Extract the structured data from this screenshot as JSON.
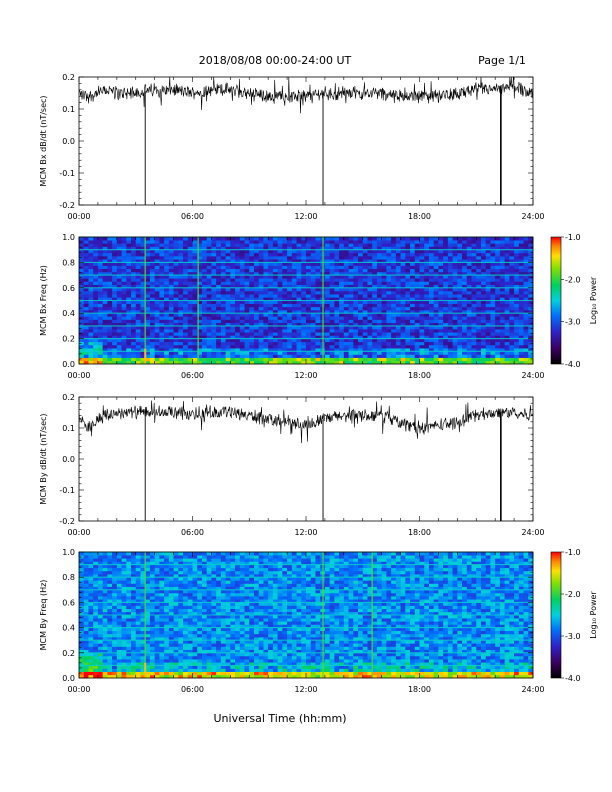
{
  "header": {
    "title": "2018/08/08  00:00-24:00 UT",
    "page": "Page 1/1"
  },
  "xlabel": "Universal Time (hh:mm)",
  "colorbar_label": "Log₁₀ Power",
  "chart_data": [
    {
      "type": "line",
      "ylabel": "MCM Bx dB/dt (nT/sec)",
      "xlim": [
        0,
        24
      ],
      "ylim": [
        -0.2,
        0.2
      ],
      "xticks": [
        "00:00",
        "06:00",
        "12:00",
        "18:00",
        "24:00"
      ],
      "yticks": [
        "0.2",
        "0.1",
        "0.0",
        "-0.1",
        "-0.2"
      ],
      "series": [
        {
          "x": [
            0,
            0.5,
            1,
            1.5,
            2,
            3,
            4,
            5,
            6,
            7,
            8,
            9,
            10,
            11,
            12,
            13,
            14,
            15,
            16,
            17,
            18,
            19,
            20,
            21,
            22,
            23,
            24
          ],
          "y": [
            0.15,
            0.14,
            0.15,
            0.16,
            0.15,
            0.15,
            0.16,
            0.16,
            0.15,
            0.16,
            0.16,
            0.15,
            0.14,
            0.14,
            0.14,
            0.15,
            0.15,
            0.15,
            0.15,
            0.14,
            0.14,
            0.14,
            0.15,
            0.16,
            0.16,
            0.17,
            0.15
          ]
        }
      ],
      "spikes": [
        3.5,
        12.9,
        22.3
      ]
    },
    {
      "type": "heatmap",
      "ylabel": "MCM Bx Freq (Hz)",
      "xlim": [
        0,
        24
      ],
      "ylim": [
        0,
        1
      ],
      "xticks": [
        "00:00",
        "06:00",
        "12:00",
        "18:00",
        "24:00"
      ],
      "yticks": [
        "1.0",
        "0.8",
        "0.6",
        "0.4",
        "0.2",
        "0.0"
      ],
      "colorbar": {
        "range": [
          -4.0,
          -1.0
        ],
        "ticks": [
          "-1.0",
          "-2.0",
          "-3.0",
          "-4.0"
        ]
      },
      "harmonic_lines_hz": [
        0.1,
        0.2,
        0.3,
        0.4,
        0.5,
        0.6,
        0.7,
        0.8,
        0.9,
        1.0
      ],
      "vertical_events": [
        3.5,
        6.3,
        12.9
      ]
    },
    {
      "type": "line",
      "ylabel": "MCM By dB/dt (nT/sec)",
      "xlim": [
        0,
        24
      ],
      "ylim": [
        -0.2,
        0.2
      ],
      "xticks": [
        "00:00",
        "06:00",
        "12:00",
        "18:00",
        "24:00"
      ],
      "yticks": [
        "0.2",
        "0.1",
        "0.0",
        "-0.1",
        "-0.2"
      ],
      "series": [
        {
          "x": [
            0,
            0.5,
            1,
            1.5,
            2,
            3,
            4,
            5,
            6,
            7,
            8,
            9,
            10,
            11,
            12,
            13,
            14,
            15,
            16,
            17,
            18,
            19,
            20,
            21,
            22,
            23,
            24
          ],
          "y": [
            0.14,
            0.1,
            0.13,
            0.14,
            0.15,
            0.15,
            0.15,
            0.15,
            0.14,
            0.15,
            0.15,
            0.14,
            0.13,
            0.12,
            0.11,
            0.13,
            0.14,
            0.14,
            0.14,
            0.12,
            0.1,
            0.11,
            0.12,
            0.14,
            0.15,
            0.15,
            0.14
          ]
        }
      ],
      "spikes": [
        3.5,
        12.9,
        22.3
      ]
    },
    {
      "type": "heatmap",
      "ylabel": "MCM By Freq (Hz)",
      "xlim": [
        0,
        24
      ],
      "ylim": [
        0,
        1
      ],
      "xticks": [
        "00:00",
        "06:00",
        "12:00",
        "18:00",
        "24:00"
      ],
      "yticks": [
        "1.0",
        "0.8",
        "0.6",
        "0.4",
        "0.2",
        "0.0"
      ],
      "colorbar": {
        "range": [
          -4.0,
          -1.0
        ],
        "ticks": [
          "-1.0",
          "-2.0",
          "-3.0",
          "-4.0"
        ]
      },
      "harmonic_lines_hz": [
        0.1,
        0.2,
        0.3,
        0.4,
        0.5,
        0.6,
        0.7,
        0.8,
        0.9,
        1.0
      ],
      "vertical_events": [
        3.5,
        12.9,
        15.5
      ]
    }
  ]
}
